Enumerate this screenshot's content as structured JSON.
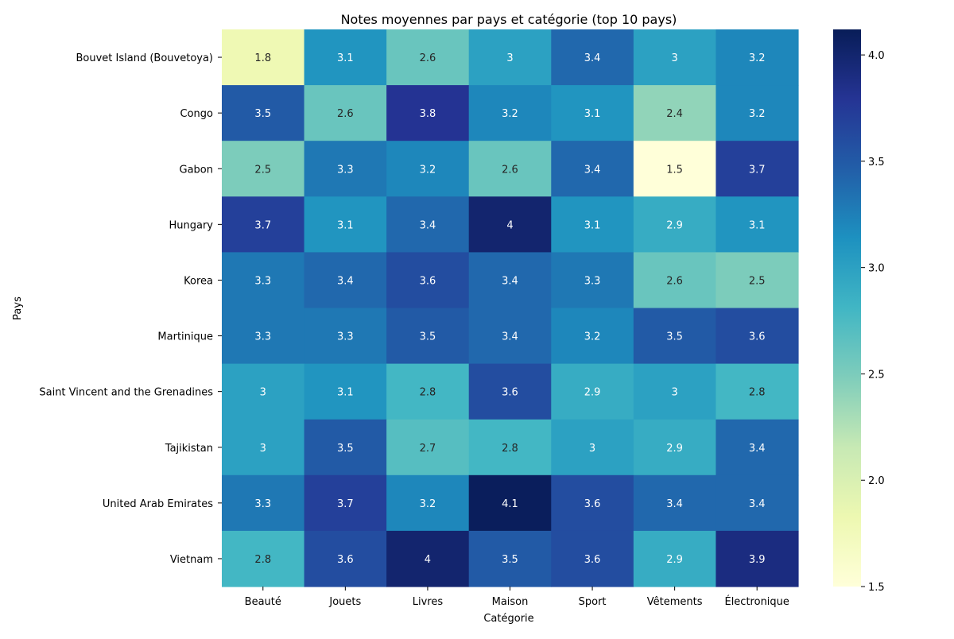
{
  "chart_data": {
    "type": "heatmap",
    "title": "Notes moyennes par pays et catégorie (top 10 pays)",
    "xlabel": "Catégorie",
    "ylabel": "Pays",
    "x_categories": [
      "Beauté",
      "Jouets",
      "Livres",
      "Maison",
      "Sport",
      "Vêtements",
      "Électronique"
    ],
    "y_categories": [
      "Bouvet Island (Bouvetoya)",
      "Congo",
      "Gabon",
      "Hungary",
      "Korea",
      "Martinique",
      "Saint Vincent and the Grenadines",
      "Tajikistan",
      "United Arab Emirates",
      "Vietnam"
    ],
    "values": [
      [
        1.8,
        3.1,
        2.6,
        3.0,
        3.4,
        3.0,
        3.2
      ],
      [
        3.5,
        2.6,
        3.8,
        3.2,
        3.1,
        2.4,
        3.2
      ],
      [
        2.5,
        3.3,
        3.2,
        2.6,
        3.4,
        1.5,
        3.7
      ],
      [
        3.7,
        3.1,
        3.4,
        4.0,
        3.1,
        2.9,
        3.1
      ],
      [
        3.3,
        3.4,
        3.6,
        3.4,
        3.3,
        2.6,
        2.5
      ],
      [
        3.3,
        3.3,
        3.5,
        3.4,
        3.2,
        3.5,
        3.6
      ],
      [
        3.0,
        3.1,
        2.8,
        3.6,
        2.9,
        3.0,
        2.8
      ],
      [
        3.0,
        3.5,
        2.7,
        2.8,
        3.0,
        2.9,
        3.4
      ],
      [
        3.3,
        3.7,
        3.2,
        4.1,
        3.6,
        3.4,
        3.4
      ],
      [
        2.8,
        3.6,
        4.0,
        3.5,
        3.6,
        2.9,
        3.9
      ]
    ],
    "cell_labels": [
      [
        "1.8",
        "3.1",
        "2.6",
        "3",
        "3.4",
        "3",
        "3.2"
      ],
      [
        "3.5",
        "2.6",
        "3.8",
        "3.2",
        "3.1",
        "2.4",
        "3.2"
      ],
      [
        "2.5",
        "3.3",
        "3.2",
        "2.6",
        "3.4",
        "1.5",
        "3.7"
      ],
      [
        "3.7",
        "3.1",
        "3.4",
        "4",
        "3.1",
        "2.9",
        "3.1"
      ],
      [
        "3.3",
        "3.4",
        "3.6",
        "3.4",
        "3.3",
        "2.6",
        "2.5"
      ],
      [
        "3.3",
        "3.3",
        "3.5",
        "3.4",
        "3.2",
        "3.5",
        "3.6"
      ],
      [
        "3",
        "3.1",
        "2.8",
        "3.6",
        "2.9",
        "3",
        "2.8"
      ],
      [
        "3",
        "3.5",
        "2.7",
        "2.8",
        "3",
        "2.9",
        "3.4"
      ],
      [
        "3.3",
        "3.7",
        "3.2",
        "4.1",
        "3.6",
        "3.4",
        "3.4"
      ],
      [
        "2.8",
        "3.6",
        "4",
        "3.5",
        "3.6",
        "2.9",
        "3.9"
      ]
    ],
    "colormap": "YlGnBu",
    "colorbar": {
      "min": 1.5,
      "max": 4.12,
      "ticks": [
        1.5,
        2.0,
        2.5,
        3.0,
        3.5,
        4.0
      ],
      "tick_labels": [
        "1.5",
        "2.0",
        "2.5",
        "3.0",
        "3.5",
        "4.0"
      ]
    },
    "colors": {
      "ylgnbu": [
        "#ffffd9",
        "#edf8b1",
        "#c7e9b4",
        "#7fcdbb",
        "#41b6c4",
        "#1d91c0",
        "#225ea8",
        "#253494",
        "#081d58"
      ],
      "text_dark": "#262626",
      "text_light": "#ffffff"
    }
  }
}
